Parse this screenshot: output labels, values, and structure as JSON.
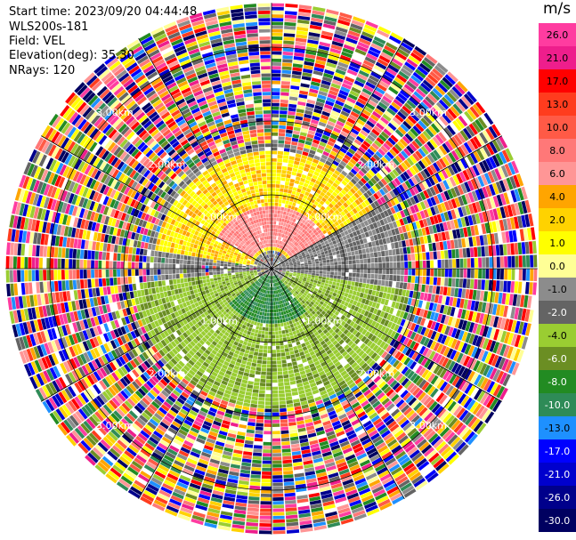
{
  "info": {
    "start_time": "Start time: 2023/09/20 04:44:48",
    "instrument": "WLS200s-181",
    "field": "Field: VEL",
    "elevation": "Elevation(deg): 35.30",
    "nrays": "NRays: 120"
  },
  "chart_data": {
    "type": "heatmap",
    "projection": "polar PPI",
    "field": "VEL",
    "nrays": 120,
    "elevation_deg": 35.3,
    "range_rings_km": [
      1.0,
      2.0,
      3.0
    ],
    "ring_labels": [
      "1.00km",
      "2.00km",
      "3.00km"
    ],
    "max_range_km": 3.6,
    "gate_spacing_km": 0.05,
    "spokes_deg": [
      0,
      30,
      60,
      90,
      120,
      150,
      180,
      210,
      240,
      270,
      300,
      330
    ],
    "colorbar": {
      "unit": "m/s",
      "ticks": [
        "26.0",
        "21.0",
        "17.0",
        "13.0",
        "10.0",
        "8.0",
        "6.0",
        "4.0",
        "2.0",
        "1.0",
        "0.0",
        "-1.0",
        "-2.0",
        "-4.0",
        "-6.0",
        "-8.0",
        "-10.0",
        "-13.0",
        "-17.0",
        "-21.0",
        "-26.0",
        "-30.0"
      ],
      "colors": [
        "#ff3ca0",
        "#ee1e8c",
        "#ff0000",
        "#ff3c1e",
        "#ff5a46",
        "#ff7878",
        "#ff9696",
        "#ffa500",
        "#ffd200",
        "#ffff00",
        "#ffff96",
        "#8c8c8c",
        "#646464",
        "#9acd32",
        "#6b8e23",
        "#228b22",
        "#2e8b57",
        "#1e90ff",
        "#0000ff",
        "#0000cd",
        "#00008b",
        "#000060"
      ]
    },
    "zones": [
      {
        "name": "receding",
        "start_deg": 280,
        "end_deg": 60,
        "r_min_km": 0.25,
        "r_max_km": 1.6,
        "color_indices": [
          9,
          9,
          8,
          7
        ]
      },
      {
        "name": "receding-core",
        "start_deg": 300,
        "end_deg": 60,
        "r_min_km": 0.3,
        "r_max_km": 0.85,
        "color_indices": [
          6,
          5
        ]
      },
      {
        "name": "approaching",
        "start_deg": 100,
        "end_deg": 265,
        "r_min_km": 0.2,
        "r_max_km": 1.9,
        "color_indices": [
          13,
          14,
          13
        ]
      },
      {
        "name": "approaching-core",
        "start_deg": 140,
        "end_deg": 230,
        "r_min_km": 0.1,
        "r_max_km": 0.75,
        "color_indices": [
          15,
          16
        ]
      },
      {
        "name": "near-zero",
        "start_deg": 60,
        "end_deg": 100,
        "r_min_km": 0.1,
        "r_max_km": 1.8,
        "color_indices": [
          11,
          12
        ]
      }
    ]
  }
}
